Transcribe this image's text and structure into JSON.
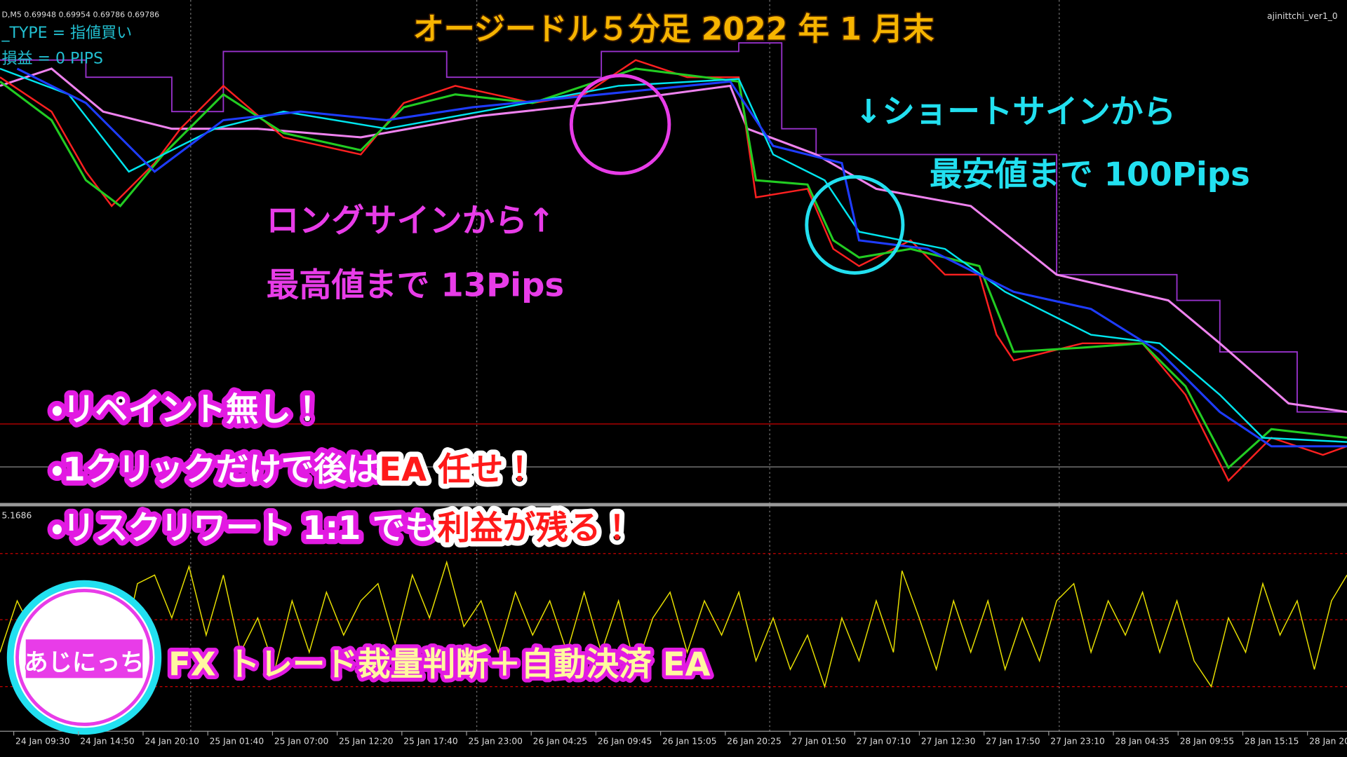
{
  "header": {
    "symbol_info": "D,M5  0.69948 0.69954 0.69786 0.69786",
    "order_type": "_TYPE = 指値買い",
    "profit": "損益 = 0 PIPS",
    "watermark": "ajinittchi_ver1_0"
  },
  "title": "オージードル５分足 2022 年 1 月末",
  "annotations": {
    "short": [
      "↓ショートサインから",
      "最安値まで 100Pips"
    ],
    "long": [
      "ロングサインから↑",
      "最高値まで 13Pips"
    ]
  },
  "bullets": [
    {
      "text": "・リペイント無し！"
    },
    {
      "text": "・1クリックだけで後は",
      "highlight": "EA 任せ！"
    },
    {
      "text": "・リスクリワート 1:1 でも",
      "highlight": "利益が残る！"
    }
  ],
  "indicator_label": "5.1686",
  "logo": "あじにっち",
  "banner": "FX トレード裁量判断＋自動決済 EA",
  "x_labels": [
    "24 Jan 09:30",
    "24 Jan 14:50",
    "24 Jan 20:10",
    "25 Jan 01:40",
    "25 Jan 07:00",
    "25 Jan 12:20",
    "25 Jan 17:40",
    "25 Jan 23:00",
    "26 Jan 04:25",
    "26 Jan 09:45",
    "26 Jan 15:05",
    "26 Jan 20:25",
    "27 Jan 01:50",
    "27 Jan 07:10",
    "27 Jan 12:30",
    "27 Jan 17:50",
    "27 Jan 23:10",
    "28 Jan 04:35",
    "28 Jan 09:55",
    "28 Jan 15:15",
    "28 Jan 20:"
  ]
}
